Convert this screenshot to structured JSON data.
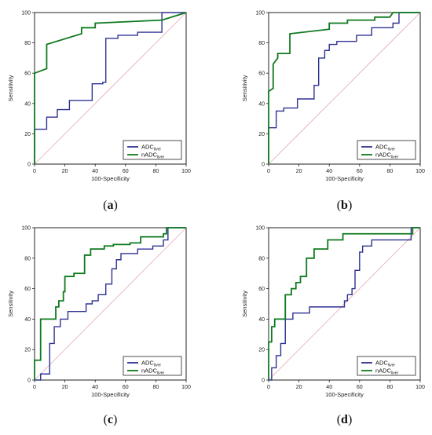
{
  "colors": {
    "adc": "#2E3192",
    "nadc": "#0E7A1E",
    "diagonal": "#E6A8B4",
    "axis": "#222222",
    "background": "#ffffff"
  },
  "chart_data": [
    {
      "type": "line",
      "panel": "a",
      "caption_open": "(",
      "caption_letter": "a",
      "caption_close": ")",
      "xlabel": "100-Specificity",
      "ylabel": "Sensitivity",
      "xlim": [
        0,
        100
      ],
      "ylim": [
        0,
        100
      ],
      "xticks": [
        "0",
        "20",
        "40",
        "60",
        "80",
        "100"
      ],
      "yticks": [
        "0",
        "20",
        "40",
        "60",
        "80",
        "100"
      ],
      "grid": false,
      "legend_position": "bottom-right",
      "reference_line": "diagonal",
      "series": [
        {
          "name": "ADC",
          "subscript": "liver",
          "color": "#2E3192",
          "x": [
            0,
            0,
            8,
            8,
            15,
            15,
            23,
            23,
            38,
            38,
            45,
            45,
            47,
            47,
            55,
            55,
            68,
            68,
            84,
            84,
            100
          ],
          "y": [
            0,
            23,
            23,
            31,
            31,
            36,
            36,
            42,
            42,
            53,
            53,
            54,
            54,
            83,
            83,
            85,
            85,
            87,
            87,
            100,
            100
          ]
        },
        {
          "name": "nADC",
          "subscript": "liver",
          "color": "#0E7A1E",
          "x": [
            0,
            0,
            8,
            8,
            31,
            31,
            40,
            40,
            84,
            100
          ],
          "y": [
            0,
            60,
            63,
            79,
            86,
            90,
            90,
            93,
            95,
            100
          ]
        }
      ]
    },
    {
      "type": "line",
      "panel": "b",
      "caption_open": "(",
      "caption_letter": "b",
      "caption_close": ")",
      "xlabel": "100-Specificity",
      "ylabel": "Sensitivity",
      "xlim": [
        0,
        100
      ],
      "ylim": [
        0,
        100
      ],
      "xticks": [
        "0",
        "20",
        "40",
        "60",
        "80",
        "100"
      ],
      "yticks": [
        "0",
        "20",
        "40",
        "60",
        "80",
        "100"
      ],
      "grid": false,
      "legend_position": "bottom-right",
      "reference_line": "diagonal",
      "series": [
        {
          "name": "ADC",
          "subscript": "liver",
          "color": "#2E3192",
          "x": [
            0,
            0,
            5,
            5,
            10,
            10,
            19,
            19,
            30,
            30,
            33,
            33,
            37,
            37,
            40,
            40,
            45,
            45,
            58,
            58,
            68,
            68,
            82,
            82,
            86,
            86,
            100
          ],
          "y": [
            0,
            24,
            24,
            35,
            35,
            37,
            37,
            43,
            43,
            52,
            52,
            70,
            70,
            75,
            75,
            79,
            79,
            81,
            81,
            85,
            85,
            90,
            90,
            93,
            93,
            100,
            100
          ]
        },
        {
          "name": "nADC",
          "subscript": "liver",
          "color": "#0E7A1E",
          "x": [
            0,
            0,
            3,
            3,
            6,
            6,
            14,
            14,
            40,
            40,
            52,
            52,
            70,
            70,
            80,
            82,
            100
          ],
          "y": [
            0,
            48,
            50,
            66,
            70,
            73,
            73,
            86,
            89,
            93,
            93,
            95,
            95,
            97,
            97,
            100,
            100
          ]
        }
      ]
    },
    {
      "type": "line",
      "panel": "c",
      "caption_open": "(",
      "caption_letter": "c",
      "caption_close": ")",
      "xlabel": "100-Specificity",
      "ylabel": "Sensitivity",
      "xlim": [
        0,
        100
      ],
      "ylim": [
        0,
        100
      ],
      "xticks": [
        "0",
        "20",
        "40",
        "60",
        "80",
        "100"
      ],
      "yticks": [
        "0",
        "20",
        "40",
        "60",
        "80",
        "100"
      ],
      "grid": false,
      "legend_position": "bottom-right",
      "reference_line": "diagonal",
      "series": [
        {
          "name": "ADC",
          "subscript": "liver",
          "color": "#2E3192",
          "x": [
            0,
            4,
            4,
            10,
            10,
            13,
            13,
            17,
            17,
            22,
            22,
            34,
            34,
            38,
            38,
            42,
            42,
            47,
            47,
            51,
            51,
            54,
            54,
            57,
            57,
            68,
            68,
            78,
            78,
            85,
            85,
            88,
            88,
            100
          ],
          "y": [
            0,
            0,
            4,
            4,
            24,
            24,
            35,
            35,
            40,
            40,
            45,
            45,
            50,
            50,
            52,
            52,
            56,
            56,
            63,
            63,
            73,
            73,
            79,
            79,
            83,
            83,
            86,
            86,
            88,
            88,
            92,
            92,
            100,
            100
          ]
        },
        {
          "name": "nADC",
          "subscript": "liver",
          "color": "#0E7A1E",
          "x": [
            0,
            0,
            4,
            4,
            14,
            14,
            16,
            16,
            19,
            19,
            20,
            20,
            26,
            26,
            33,
            33,
            37,
            37,
            46,
            46,
            52,
            52,
            63,
            63,
            70,
            70,
            85,
            85,
            87,
            87,
            100
          ],
          "y": [
            0,
            13,
            13,
            40,
            40,
            48,
            48,
            52,
            52,
            58,
            58,
            68,
            68,
            70,
            70,
            82,
            82,
            86,
            86,
            88,
            88,
            89,
            89,
            90,
            90,
            94,
            94,
            96,
            96,
            100,
            100
          ]
        }
      ]
    },
    {
      "type": "line",
      "panel": "d",
      "caption_open": "(",
      "caption_letter": "d",
      "caption_close": ")",
      "xlabel": "100-Specificity",
      "ylabel": "Sensitivity",
      "xlim": [
        0,
        100
      ],
      "ylim": [
        0,
        100
      ],
      "xticks": [
        "0",
        "20",
        "40",
        "60",
        "80",
        "100"
      ],
      "yticks": [
        "0",
        "20",
        "40",
        "60",
        "80",
        "100"
      ],
      "grid": false,
      "legend_position": "bottom-right",
      "reference_line": "diagonal",
      "series": [
        {
          "name": "ADC",
          "subscript": "liver",
          "color": "#2E3192",
          "x": [
            0,
            2,
            2,
            5,
            5,
            8,
            8,
            11,
            11,
            16,
            16,
            27,
            27,
            50,
            50,
            52,
            52,
            55,
            55,
            57,
            57,
            60,
            60,
            62,
            62,
            68,
            68,
            94,
            94,
            100
          ],
          "y": [
            0,
            0,
            8,
            8,
            16,
            16,
            24,
            24,
            40,
            40,
            44,
            44,
            48,
            48,
            52,
            52,
            56,
            56,
            60,
            60,
            72,
            72,
            84,
            84,
            88,
            88,
            92,
            92,
            100,
            100
          ]
        },
        {
          "name": "nADC",
          "subscript": "liver",
          "color": "#0E7A1E",
          "x": [
            0,
            0,
            2,
            2,
            4,
            4,
            11,
            11,
            15,
            15,
            18,
            18,
            21,
            21,
            25,
            25,
            30,
            30,
            39,
            39,
            49,
            49,
            95,
            95,
            100
          ],
          "y": [
            0,
            25,
            25,
            35,
            35,
            40,
            40,
            56,
            56,
            60,
            60,
            64,
            64,
            68,
            68,
            80,
            80,
            86,
            86,
            92,
            92,
            96,
            96,
            100,
            100
          ]
        }
      ]
    }
  ]
}
